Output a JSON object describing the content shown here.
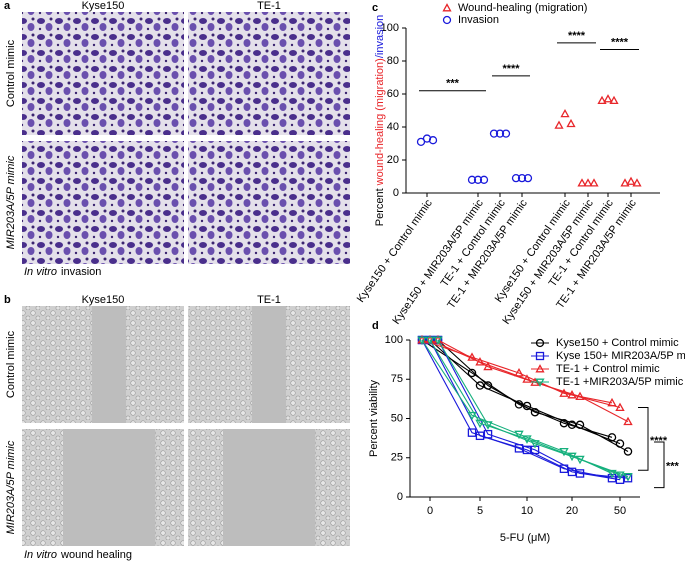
{
  "panels": [
    {
      "letter": "a",
      "columns": [
        "Kyse150",
        "TE-1"
      ],
      "rows": [
        "Control mimic",
        "MIR203A/5P mimic"
      ],
      "caption": [
        "In vitro",
        "invasion"
      ]
    },
    {
      "letter": "b",
      "columns": [
        "Kyse150",
        "TE-1"
      ],
      "rows": [
        "Control mimic",
        "MIR203A/5P mimic"
      ],
      "caption": [
        "In vitro",
        "wound healing"
      ]
    }
  ],
  "chart_data": [
    {
      "type": "dot",
      "panel_label": "c",
      "ylabel": [
        "Percent",
        "wound-healing (migration)",
        "/invasion"
      ],
      "categories": [
        "Kyse150 + Control mimic",
        "Kyse150 + MIR203A/5P mimic",
        "TE-1 + Control mimic",
        "TE-1 + MIR203A/5P mimic",
        "Kyse150 + Control mimic",
        "Kyse150 + MIR203A/5P mimic",
        "TE-1 + Control mimic",
        "TE-1 + MIR203A/5P mimic"
      ],
      "ylim": [
        0,
        100
      ],
      "yticks": [
        0,
        20,
        40,
        60,
        80,
        100
      ],
      "series": [
        {
          "name": "Wound-healing (migration)",
          "color": "#e8262a",
          "marker": "triangle",
          "values": [
            null,
            null,
            null,
            null,
            [
              41,
              48,
              42
            ],
            [
              6,
              6,
              6
            ],
            [
              56,
              57,
              56
            ],
            [
              6,
              7,
              6
            ]
          ]
        },
        {
          "name": "Invasion",
          "color": "#1a1adb",
          "marker": "circle",
          "values": [
            [
              31,
              33,
              32
            ],
            [
              8,
              8,
              8
            ],
            [
              36,
              36,
              36
            ],
            [
              9,
              9,
              9
            ],
            null,
            null,
            null,
            null
          ]
        }
      ],
      "annotations": [
        {
          "label": "***",
          "from": 0,
          "to": 1,
          "y": 62
        },
        {
          "label": "****",
          "from": 2,
          "to": 3,
          "y": 71
        },
        {
          "label": "****",
          "from": 4,
          "to": 5,
          "y": 91
        },
        {
          "label": "****",
          "from": 6,
          "to": 7,
          "y": 87
        }
      ]
    },
    {
      "type": "line",
      "panel_label": "d",
      "xlabel": "5-FU (μM)",
      "ylabel": "Percent viability",
      "categories": [
        "0",
        "5",
        "10",
        "20",
        "50"
      ],
      "ylim": [
        0,
        100
      ],
      "yticks": [
        0,
        25,
        50,
        75,
        100
      ],
      "series": [
        {
          "name": "Kyse150 + Control mimic",
          "color": "#000000",
          "marker": "circle",
          "values": [
            [
              100,
              100,
              100
            ],
            [
              79,
              71,
              71
            ],
            [
              59,
              58,
              54
            ],
            [
              47,
              46,
              46
            ],
            [
              38,
              34,
              29
            ]
          ]
        },
        {
          "name": "Kyse 150+ MIR203A/5P mimic",
          "color": "#1a1adb",
          "marker": "square",
          "values": [
            [
              100,
              100,
              100
            ],
            [
              41,
              39,
              40
            ],
            [
              31,
              30,
              30
            ],
            [
              18,
              16,
              15
            ],
            [
              12,
              11,
              12
            ]
          ]
        },
        {
          "name": "TE-1 + Control mimic",
          "color": "#e8262a",
          "marker": "triangle",
          "values": [
            [
              100,
              100,
              100
            ],
            [
              89,
              86,
              83
            ],
            [
              79,
              75,
              73
            ],
            [
              66,
              65,
              64
            ],
            [
              60,
              57,
              48
            ]
          ]
        },
        {
          "name": "TE-1 +MIR203A/5P mimic",
          "color": "#16b07d",
          "marker": "triangle-down",
          "values": [
            [
              100,
              100,
              100
            ],
            [
              52,
              47,
              46
            ],
            [
              40,
              37,
              34
            ],
            [
              29,
              26,
              24
            ],
            [
              15,
              14,
              13
            ]
          ]
        }
      ],
      "annotations": [
        {
          "label": "****",
          "y1": 57,
          "y2": 17
        },
        {
          "label": "***",
          "y1": 35,
          "y2": 6
        }
      ]
    }
  ]
}
